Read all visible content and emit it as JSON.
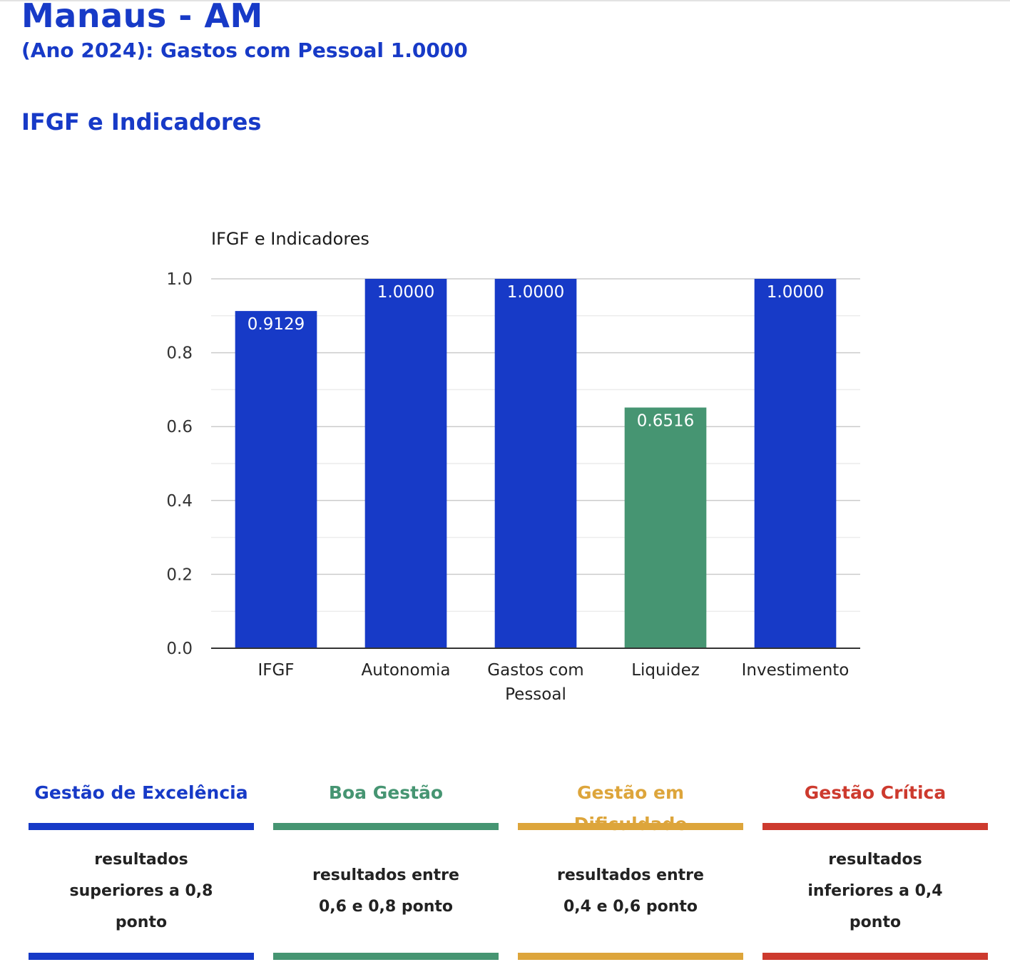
{
  "page": {
    "title": "Manaus - AM",
    "subtitle": "(Ano 2024): Gastos com Pessoal 1.0000",
    "section_title": "IFGF e Indicadores"
  },
  "chart_data": {
    "type": "bar",
    "title": "IFGF e Indicadores",
    "xlabel": "",
    "ylabel": "",
    "categories": [
      "IFGF",
      "Autonomia",
      "Gastos com Pessoal",
      "Liquidez",
      "Investimento"
    ],
    "category_lines": [
      [
        "IFGF"
      ],
      [
        "Autonomia"
      ],
      [
        "Gastos com",
        "Pessoal"
      ],
      [
        "Liquidez"
      ],
      [
        "Investimento"
      ]
    ],
    "values": [
      0.9129,
      1.0,
      1.0,
      0.6516,
      1.0
    ],
    "data_labels": [
      "0.9129",
      "1.0000",
      "1.0000",
      "0.6516",
      "1.0000"
    ],
    "bar_colors": [
      "#173ac7",
      "#173ac7",
      "#173ac7",
      "#469572",
      "#173ac7"
    ],
    "ylim": [
      0,
      1.0
    ],
    "yticks": [
      0.0,
      0.2,
      0.4,
      0.6,
      0.8,
      1.0
    ],
    "ytick_labels": [
      "0.0",
      "0.2",
      "0.4",
      "0.6",
      "0.8",
      "1.0"
    ],
    "grid": true,
    "legend": "none"
  },
  "legend": [
    {
      "title": "Gestão de Excelência",
      "description": "resultados superiores a 0,8 ponto",
      "color": "#173ac7"
    },
    {
      "title": "Boa Gestão",
      "description": "resultados entre 0,6 e 0,8 ponto",
      "color": "#469572"
    },
    {
      "title": "Gestão em Dificuldade",
      "description": "resultados entre 0,4 e 0,6 ponto",
      "color": "#dda53b"
    },
    {
      "title": "Gestão Crítica",
      "description": "resultados inferiores a 0,4 ponto",
      "color": "#cd3a2e"
    }
  ]
}
